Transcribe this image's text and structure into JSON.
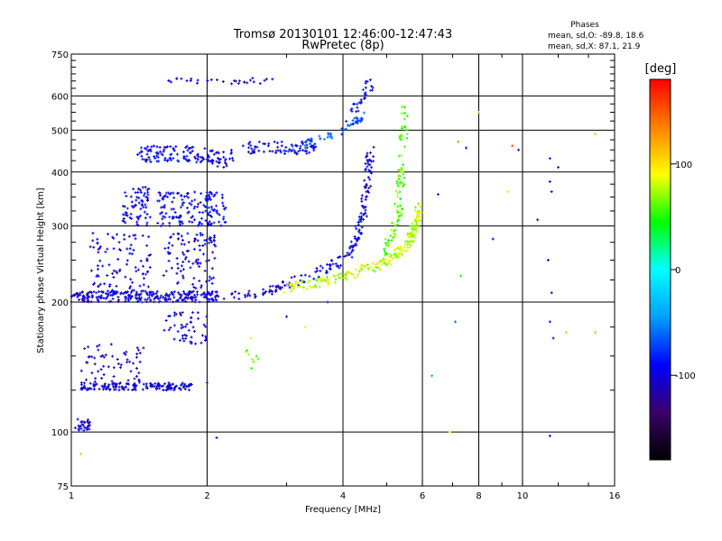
{
  "header": {
    "title": "Tromsø 20130101 12:46:00-12:47:43",
    "subtitle": "RwPretec (8p)",
    "stats_title": "Phases",
    "stats_o": "mean, sd,O: -89.8, 18.6",
    "stats_x": "mean, sd,X:  87.1, 21.9"
  },
  "chart_data": {
    "type": "scatter",
    "xlabel": "Frequency [MHz]",
    "ylabel": "Stationary phase Virtual Height [km]",
    "xscale": "log",
    "yscale": "log",
    "xlim": [
      1,
      16
    ],
    "ylim": [
      75,
      750
    ],
    "x_ticks": [
      1,
      2,
      4,
      6,
      8,
      10,
      16
    ],
    "y_ticks": [
      75,
      100,
      200,
      300,
      400,
      500,
      600,
      750
    ],
    "x_minor_ticks": [
      3,
      5,
      7,
      9,
      12,
      14
    ],
    "y_minor_ticks": [
      125,
      150,
      175,
      225,
      250,
      275,
      325,
      350,
      375,
      425,
      450,
      475,
      525,
      550,
      575,
      625,
      650,
      675,
      700,
      725
    ],
    "grid": true,
    "colorbar": {
      "label": "[deg]",
      "range": [
        -180,
        180
      ],
      "ticks": [
        "100",
        "0",
        "-100"
      ],
      "tick_values": [
        100,
        0,
        -100
      ],
      "colors": [
        "#000000",
        "#3a006a",
        "#0000ff",
        "#00a0ff",
        "#00ffff",
        "#00ff00",
        "#ffff00",
        "#ff8000",
        "#ff0000"
      ]
    },
    "point_colors": {
      "o_mode_phase_mean": -89.8,
      "o_mode_phase_sd": 18.6,
      "x_mode_phase_mean": 87.1,
      "x_mode_phase_sd": 21.9
    },
    "clusters": [
      {
        "f": [
          1.02,
          1.1
        ],
        "h": [
          100,
          108
        ],
        "n": 30,
        "phase": -100
      },
      {
        "f": [
          1.05,
          1.85
        ],
        "h": [
          125,
          130
        ],
        "n": 160,
        "phase": -100
      },
      {
        "f": [
          1.05,
          1.45
        ],
        "h": [
          130,
          160
        ],
        "n": 60,
        "phase": -110
      },
      {
        "f": [
          1.0,
          2.1
        ],
        "h": [
          200,
          212
        ],
        "n": 240,
        "phase": -100
      },
      {
        "f": [
          1.1,
          1.5
        ],
        "h": [
          210,
          290
        ],
        "n": 100,
        "phase": -100
      },
      {
        "f": [
          1.3,
          1.5
        ],
        "h": [
          300,
          370
        ],
        "n": 70,
        "phase": -95
      },
      {
        "f": [
          1.55,
          2.2
        ],
        "h": [
          300,
          360
        ],
        "n": 150,
        "phase": -95
      },
      {
        "f": [
          1.6,
          2.1
        ],
        "h": [
          215,
          290
        ],
        "n": 100,
        "phase": -100
      },
      {
        "f": [
          1.6,
          2.0
        ],
        "h": [
          160,
          190
        ],
        "n": 50,
        "phase": -100
      },
      {
        "f": [
          1.4,
          1.6
        ],
        "h": [
          420,
          460
        ],
        "n": 40,
        "phase": -95
      },
      {
        "f": [
          1.6,
          2.0
        ],
        "h": [
          420,
          460
        ],
        "n": 60,
        "phase": -95
      },
      {
        "f": [
          2.0,
          2.3
        ],
        "h": [
          410,
          450
        ],
        "n": 40,
        "phase": -100
      },
      {
        "f": [
          2.4,
          3.5
        ],
        "h": [
          440,
          470
        ],
        "n": 70,
        "phase": -100
      },
      {
        "f": [
          1.6,
          2.8
        ],
        "h": [
          640,
          660
        ],
        "n": 30,
        "phase": -110
      },
      {
        "f": [
          2.4,
          2.6
        ],
        "h": [
          140,
          155
        ],
        "n": 8,
        "phase": 60
      }
    ],
    "traces": [
      {
        "name": "o-lower",
        "f": [
          2.0,
          2.6,
          3.2,
          3.7,
          4.1,
          4.3,
          4.45,
          4.55,
          4.6
        ],
        "h": [
          205,
          210,
          225,
          240,
          255,
          280,
          330,
          390,
          450
        ],
        "n": 200,
        "phase": -100
      },
      {
        "name": "x-lower",
        "f": [
          3.0,
          3.5,
          4.0,
          4.6,
          5.2,
          5.6,
          5.8,
          5.9
        ],
        "h": [
          215,
          222,
          230,
          240,
          255,
          275,
          300,
          340
        ],
        "n": 220,
        "phase": 80
      },
      {
        "name": "x-upper",
        "f": [
          5.0,
          5.3,
          5.4,
          5.5
        ],
        "h": [
          260,
          320,
          420,
          560
        ],
        "n": 100,
        "phase": 60
      },
      {
        "name": "o-upper",
        "f": [
          3.0,
          3.5,
          4.0,
          4.4
        ],
        "h": [
          450,
          470,
          500,
          540
        ],
        "n": 60,
        "phase": -70
      },
      {
        "name": "o-spur",
        "f": [
          4.2,
          4.5,
          4.6
        ],
        "h": [
          560,
          600,
          640
        ],
        "n": 30,
        "phase": -90
      }
    ],
    "scattered": [
      {
        "f": 11.5,
        "h": 430,
        "phase": -100
      },
      {
        "f": 11.5,
        "h": 380,
        "phase": -100
      },
      {
        "f": 11.6,
        "h": 360,
        "phase": -100
      },
      {
        "f": 11.4,
        "h": 250,
        "phase": -100
      },
      {
        "f": 11.6,
        "h": 210,
        "phase": -100
      },
      {
        "f": 11.5,
        "h": 180,
        "phase": -100
      },
      {
        "f": 11.7,
        "h": 165,
        "phase": -100
      },
      {
        "f": 12.0,
        "h": 410,
        "phase": -100
      },
      {
        "f": 10.8,
        "h": 310,
        "phase": -100
      },
      {
        "f": 9.8,
        "h": 450,
        "phase": -100
      },
      {
        "f": 8.0,
        "h": 550,
        "phase": 110
      },
      {
        "f": 7.2,
        "h": 470,
        "phase": 130
      },
      {
        "f": 7.5,
        "h": 455,
        "phase": -100
      },
      {
        "f": 9.5,
        "h": 460,
        "phase": 150
      },
      {
        "f": 9.3,
        "h": 360,
        "phase": 80
      },
      {
        "f": 8.6,
        "h": 280,
        "phase": -100
      },
      {
        "f": 7.3,
        "h": 230,
        "phase": 40
      },
      {
        "f": 7.1,
        "h": 180,
        "phase": -60
      },
      {
        "f": 6.5,
        "h": 355,
        "phase": -100
      },
      {
        "f": 6.3,
        "h": 135,
        "phase": -40
      },
      {
        "f": 6.9,
        "h": 100,
        "phase": 90
      },
      {
        "f": 14.5,
        "h": 490,
        "phase": 110
      },
      {
        "f": 14.5,
        "h": 170,
        "phase": 120
      },
      {
        "f": 12.5,
        "h": 170,
        "phase": 110
      },
      {
        "f": 11.5,
        "h": 98,
        "phase": -100
      },
      {
        "f": 2.1,
        "h": 97,
        "phase": -120
      },
      {
        "f": 1.05,
        "h": 89,
        "phase": 110
      },
      {
        "f": 3.0,
        "h": 185,
        "phase": -100
      },
      {
        "f": 3.3,
        "h": 175,
        "phase": 100
      },
      {
        "f": 3.7,
        "h": 200,
        "phase": -100
      },
      {
        "f": 2.5,
        "h": 165,
        "phase": 80
      },
      {
        "f": 2.0,
        "h": 130,
        "phase": -100
      }
    ]
  }
}
